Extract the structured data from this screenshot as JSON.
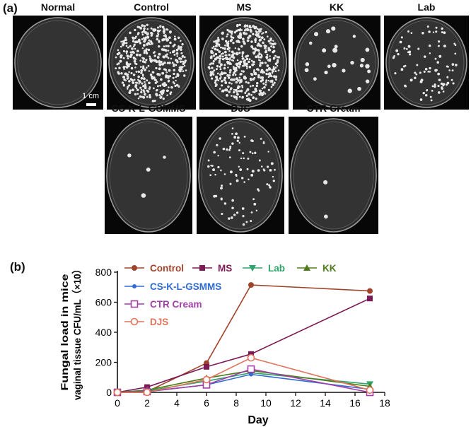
{
  "panel_a_label": "(a)",
  "panel_b_label": "(b)",
  "plates": [
    {
      "name": "Normal",
      "colonies": 0,
      "seed": 1
    },
    {
      "name": "Control",
      "colonies": 420,
      "seed": 2
    },
    {
      "name": "MS",
      "colonies": 520,
      "seed": 3
    },
    {
      "name": "KK",
      "colonies": 24,
      "seed": 4
    },
    {
      "name": "Lab",
      "colonies": 90,
      "seed": 5
    },
    {
      "name": "CS-K-L-GSMMS",
      "colonies": 4,
      "seed": 6
    },
    {
      "name": "DJS",
      "colonies": 95,
      "seed": 7
    },
    {
      "name": "CTR Cream",
      "colonies": 2,
      "seed": 8
    }
  ],
  "scale_bar_label": "1 cm",
  "chart_data": {
    "type": "line",
    "title": "",
    "xlabel": "Day",
    "ylabel_line1": "Fungal load in mice",
    "ylabel_line2": "vaginal tissue CFU/mL（×10）",
    "xlim": [
      0,
      18
    ],
    "ylim": [
      0,
      800
    ],
    "xticks": [
      0,
      2,
      4,
      6,
      8,
      10,
      12,
      14,
      16,
      18
    ],
    "yticks": [
      0,
      200,
      400,
      600,
      800
    ],
    "grid": false,
    "series": [
      {
        "name": "Control",
        "color": "#a0432b",
        "marker": "circle-filled",
        "x": [
          0,
          2,
          6,
          9,
          17
        ],
        "y": [
          0,
          5,
          195,
          715,
          675
        ]
      },
      {
        "name": "MS",
        "color": "#7b1a55",
        "marker": "square-filled",
        "x": [
          0,
          2,
          6,
          9,
          17
        ],
        "y": [
          0,
          35,
          170,
          255,
          625
        ]
      },
      {
        "name": "Lab",
        "color": "#2ea36b",
        "marker": "triangle-down-filled",
        "x": [
          0,
          2,
          6,
          9,
          17
        ],
        "y": [
          0,
          10,
          75,
          130,
          55
        ]
      },
      {
        "name": "KK",
        "color": "#4f7d1c",
        "marker": "triangle-up-filled",
        "x": [
          0,
          2,
          6,
          9,
          17
        ],
        "y": [
          0,
          15,
          95,
          145,
          40
        ]
      },
      {
        "name": "CS-K-L-GSMMS",
        "color": "#2f6bd0",
        "marker": "circle-filled-small",
        "x": [
          0,
          2,
          6,
          9,
          17
        ],
        "y": [
          0,
          5,
          50,
          120,
          20
        ]
      },
      {
        "name": "CTR Cream",
        "color": "#a13ea8",
        "marker": "square-open",
        "x": [
          0,
          2,
          6,
          9,
          17
        ],
        "y": [
          0,
          5,
          50,
          155,
          0
        ]
      },
      {
        "name": "DJS",
        "color": "#e0745c",
        "marker": "circle-open",
        "x": [
          0,
          2,
          6,
          9,
          17
        ],
        "y": [
          0,
          0,
          85,
          230,
          15
        ]
      }
    ],
    "legend_placement": "top-left"
  }
}
